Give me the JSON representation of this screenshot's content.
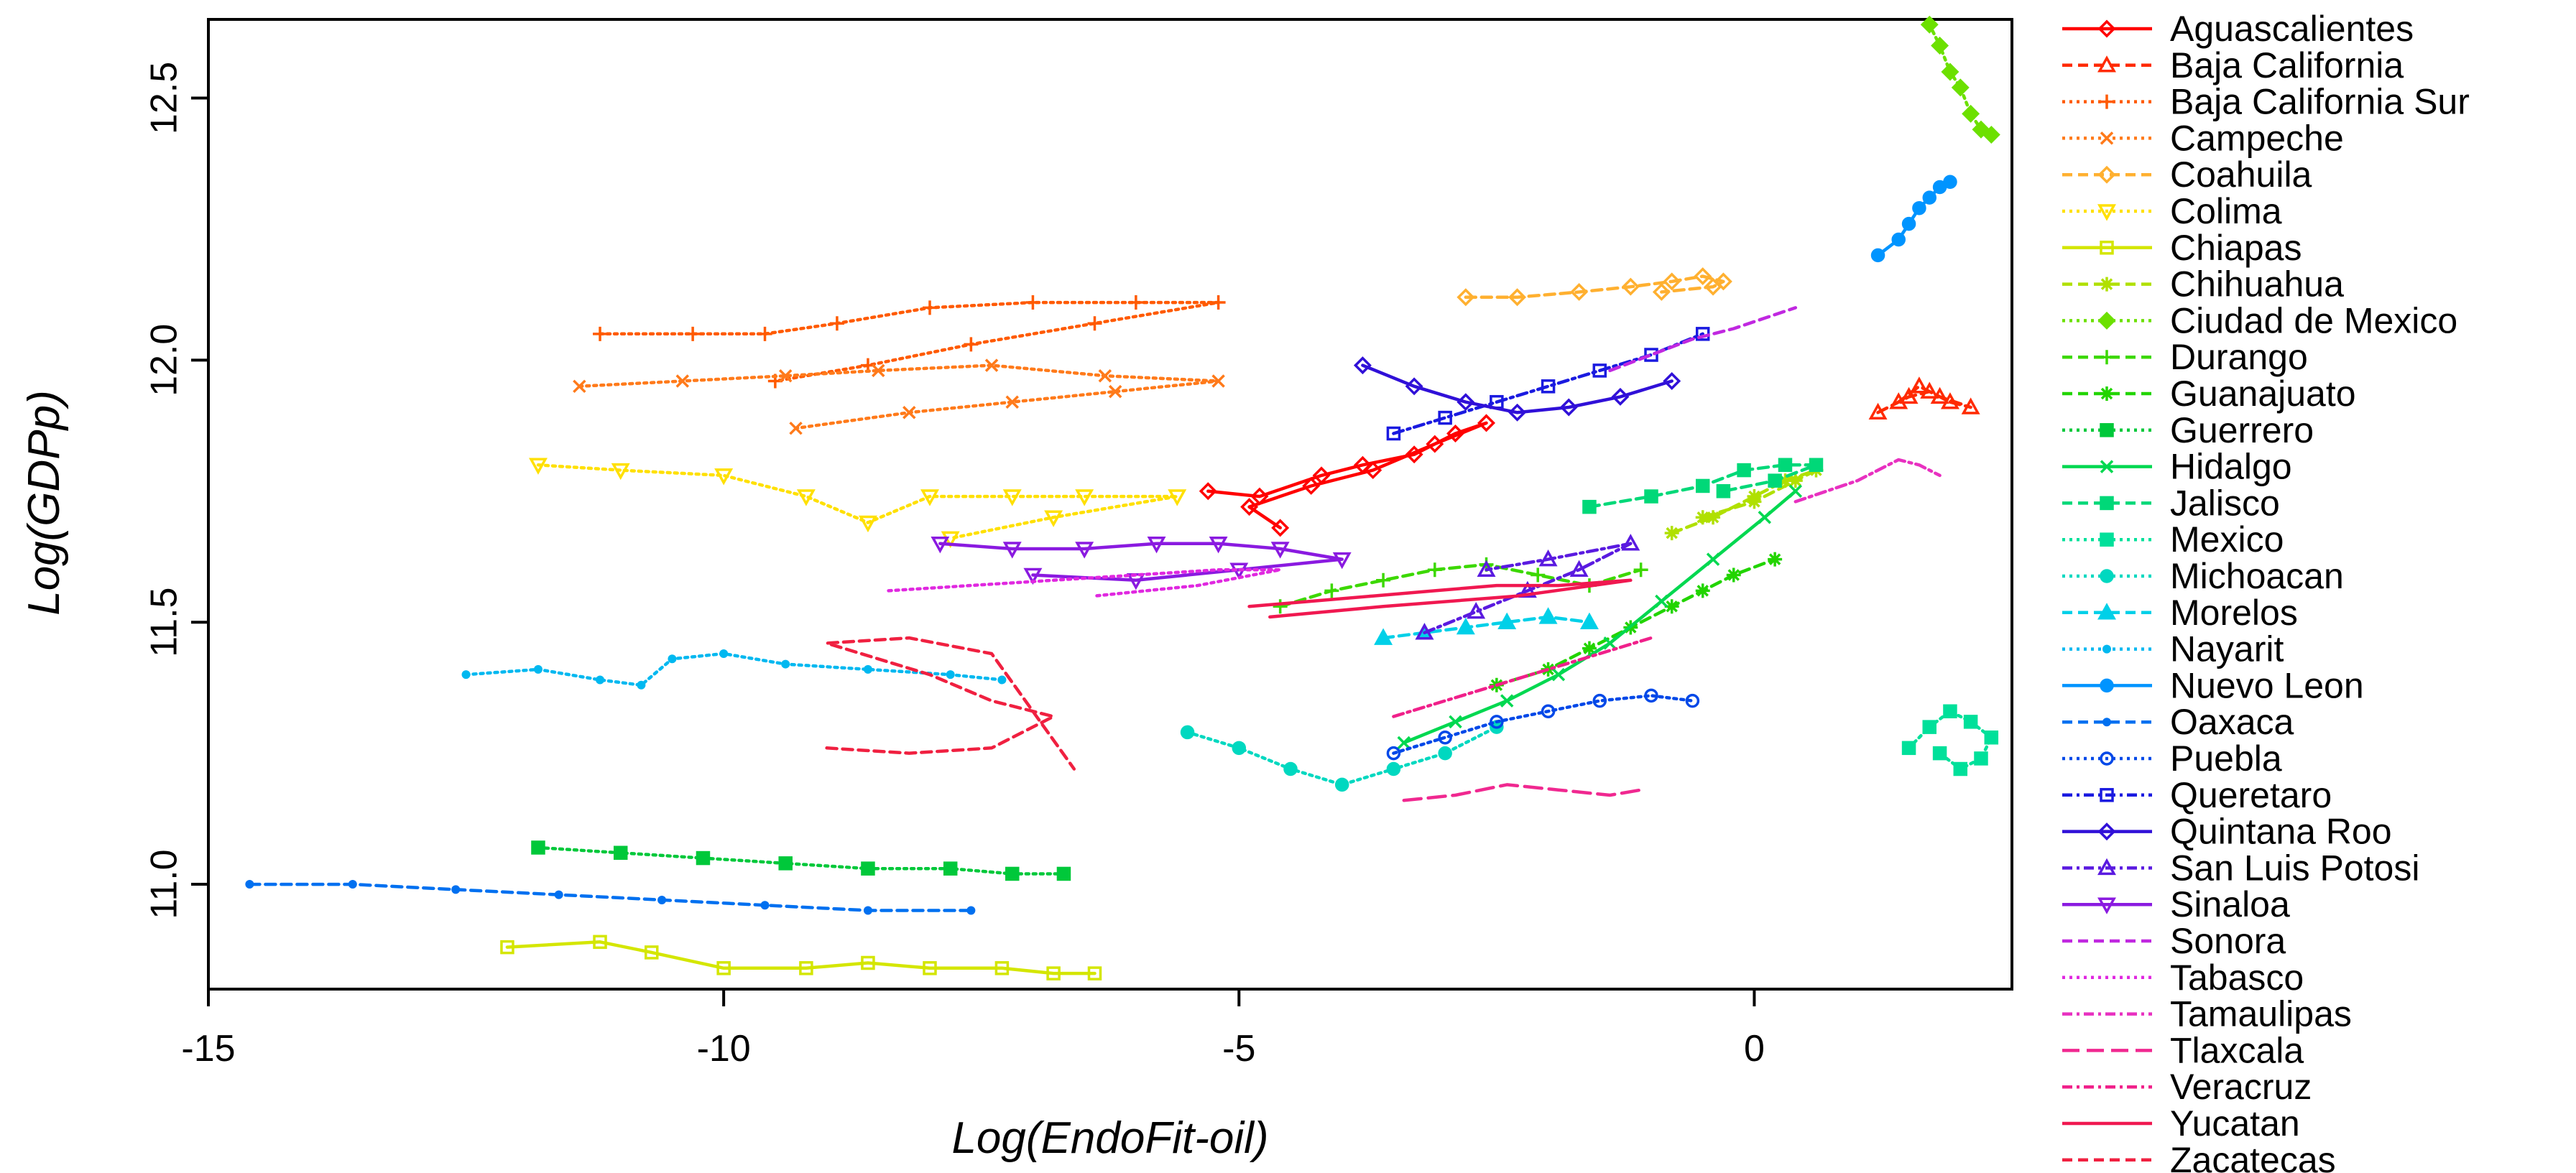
{
  "chart_data": {
    "type": "line",
    "title": "",
    "xlabel": "Log(EndoFit-oil)",
    "ylabel": "Log(GDPp)",
    "xlim": [
      -15,
      2.5
    ],
    "ylim": [
      10.8,
      12.65
    ],
    "xticks": [
      -15,
      -10,
      -5,
      0
    ],
    "xtick_labels": [
      "-15",
      "-10",
      "-5",
      "0"
    ],
    "yticks": [
      11.0,
      11.5,
      12.0,
      12.5
    ],
    "ytick_labels": [
      "11.0",
      "11.5",
      "12.0",
      "12.5"
    ],
    "grid": false,
    "legend_position": "right",
    "series": [
      {
        "name": "Aguascalientes",
        "color": "#ff0000",
        "dash": "",
        "marker": "diamond",
        "x": [
          -5.3,
          -4.8,
          -4.2,
          -3.8,
          -3.3,
          -2.9,
          -2.6,
          -3.1,
          -3.7,
          -4.3,
          -4.9,
          -4.6
        ],
        "y": [
          11.75,
          11.74,
          11.78,
          11.8,
          11.82,
          11.86,
          11.88,
          11.84,
          11.79,
          11.76,
          11.72,
          11.68
        ]
      },
      {
        "name": "Baja California",
        "color": "#ff2a00",
        "dash": "14,8",
        "marker": "triangle",
        "x": [
          1.2,
          1.5,
          1.7,
          1.9,
          2.1,
          1.8,
          1.6,
          1.4
        ],
        "y": [
          11.9,
          11.93,
          11.94,
          11.92,
          11.91,
          11.93,
          11.95,
          11.92
        ]
      },
      {
        "name": "Baja California Sur",
        "color": "#ff5a00",
        "dash": "4,6",
        "marker": "plus",
        "x": [
          -11.2,
          -10.3,
          -9.6,
          -8.9,
          -8.0,
          -7.0,
          -6.0,
          -5.2,
          -6.4,
          -7.6,
          -8.6,
          -9.5
        ],
        "y": [
          12.05,
          12.05,
          12.05,
          12.07,
          12.1,
          12.11,
          12.11,
          12.11,
          12.07,
          12.03,
          11.99,
          11.96
        ]
      },
      {
        "name": "Campeche",
        "color": "#ff7a1a",
        "dash": "4,6",
        "marker": "x",
        "x": [
          -11.4,
          -10.4,
          -9.4,
          -8.5,
          -7.4,
          -6.3,
          -5.2,
          -6.2,
          -7.2,
          -8.2,
          -9.3
        ],
        "y": [
          11.95,
          11.96,
          11.97,
          11.98,
          11.99,
          11.97,
          11.96,
          11.94,
          11.92,
          11.9,
          11.87
        ]
      },
      {
        "name": "Coahuila",
        "color": "#ffb030",
        "dash": "14,8",
        "marker": "diamond",
        "x": [
          -2.8,
          -2.3,
          -1.7,
          -1.2,
          -0.8,
          -0.5,
          -0.3,
          -0.4,
          -0.9
        ],
        "y": [
          12.12,
          12.12,
          12.13,
          12.14,
          12.15,
          12.16,
          12.15,
          12.14,
          12.13
        ]
      },
      {
        "name": "Colima",
        "color": "#ffe000",
        "dash": "4,6",
        "marker": "triangledown",
        "x": [
          -11.8,
          -11.0,
          -10.0,
          -9.2,
          -8.6,
          -8.0,
          -7.2,
          -6.5,
          -5.6,
          -6.8,
          -7.8
        ],
        "y": [
          11.8,
          11.79,
          11.78,
          11.74,
          11.69,
          11.74,
          11.74,
          11.74,
          11.74,
          11.7,
          11.66
        ]
      },
      {
        "name": "Chiapas",
        "color": "#d4e600",
        "dash": "",
        "marker": "square",
        "x": [
          -12.1,
          -11.2,
          -10.7,
          -10.0,
          -9.2,
          -8.6,
          -8.0,
          -7.3,
          -6.8,
          -6.4
        ],
        "y": [
          10.88,
          10.89,
          10.87,
          10.84,
          10.84,
          10.85,
          10.84,
          10.84,
          10.83,
          10.83
        ]
      },
      {
        "name": "Chihuahua",
        "color": "#b0e000",
        "dash": "14,8",
        "marker": "asterisk",
        "x": [
          -0.8,
          -0.4,
          0.0,
          0.3,
          0.6,
          0.4,
          0.0,
          -0.5
        ],
        "y": [
          11.67,
          11.7,
          11.74,
          11.77,
          11.79,
          11.77,
          11.73,
          11.7
        ]
      },
      {
        "name": "Ciudad de Mexico",
        "color": "#6ce000",
        "dash": "4,6",
        "marker": "diamondplus",
        "x": [
          1.7,
          1.8,
          1.9,
          2.0,
          2.1,
          2.2,
          2.3
        ],
        "y": [
          12.64,
          12.6,
          12.55,
          12.52,
          12.47,
          12.44,
          12.43
        ]
      },
      {
        "name": "Durango",
        "color": "#3cd800",
        "dash": "14,8",
        "marker": "plus",
        "x": [
          -4.6,
          -4.1,
          -3.6,
          -3.1,
          -2.6,
          -2.1,
          -1.6,
          -1.1
        ],
        "y": [
          11.53,
          11.56,
          11.58,
          11.6,
          11.61,
          11.59,
          11.57,
          11.6
        ]
      },
      {
        "name": "Guanajuato",
        "color": "#22d400",
        "dash": "14,8",
        "marker": "star",
        "x": [
          -2.5,
          -2.0,
          -1.6,
          -1.2,
          -0.8,
          -0.5,
          -0.2,
          0.2
        ],
        "y": [
          11.38,
          11.41,
          11.45,
          11.49,
          11.53,
          11.56,
          11.59,
          11.62
        ]
      },
      {
        "name": "Guerrero",
        "color": "#00c83a",
        "dash": "4,6",
        "marker": "squareplus",
        "x": [
          -11.8,
          -11.0,
          -10.2,
          -9.4,
          -8.6,
          -7.8,
          -7.2,
          -6.7
        ],
        "y": [
          11.07,
          11.06,
          11.05,
          11.04,
          11.03,
          11.03,
          11.02,
          11.02
        ]
      },
      {
        "name": "Hidalgo",
        "color": "#00d850",
        "dash": "",
        "marker": "x",
        "x": [
          -3.4,
          -2.9,
          -2.4,
          -1.9,
          -1.4,
          -0.9,
          -0.4,
          0.1,
          0.4
        ],
        "y": [
          11.27,
          11.31,
          11.35,
          11.4,
          11.46,
          11.54,
          11.62,
          11.7,
          11.75
        ]
      },
      {
        "name": "Jalisco",
        "color": "#00d878",
        "dash": "14,8",
        "marker": "squarebox",
        "x": [
          -1.6,
          -1.0,
          -0.5,
          -0.1,
          0.3,
          0.6,
          0.2,
          -0.3
        ],
        "y": [
          11.72,
          11.74,
          11.76,
          11.79,
          11.8,
          11.8,
          11.77,
          11.75
        ]
      },
      {
        "name": "Mexico",
        "color": "#00e09a",
        "dash": "4,6",
        "marker": "squarefill",
        "x": [
          1.5,
          1.7,
          1.9,
          2.1,
          2.3,
          2.2,
          2.0,
          1.8
        ],
        "y": [
          11.26,
          11.3,
          11.33,
          11.31,
          11.28,
          11.24,
          11.22,
          11.25
        ]
      },
      {
        "name": "Michoacan",
        "color": "#00d8c0",
        "dash": "4,6",
        "marker": "circlefill",
        "x": [
          -5.5,
          -5.0,
          -4.5,
          -4.0,
          -3.5,
          -3.0,
          -2.5
        ],
        "y": [
          11.29,
          11.26,
          11.22,
          11.19,
          11.22,
          11.25,
          11.3
        ]
      },
      {
        "name": "Morelos",
        "color": "#00d0e8",
        "dash": "14,8",
        "marker": "trianglefill",
        "x": [
          -3.6,
          -3.2,
          -2.8,
          -2.4,
          -2.0,
          -1.6
        ],
        "y": [
          11.47,
          11.48,
          11.49,
          11.5,
          11.51,
          11.5
        ]
      },
      {
        "name": "Nayarit",
        "color": "#00b8f0",
        "dash": "4,6",
        "marker": "dotsmall",
        "x": [
          -12.5,
          -11.8,
          -11.2,
          -10.8,
          -10.5,
          -10.0,
          -9.4,
          -8.6,
          -7.8,
          -7.3
        ],
        "y": [
          11.4,
          11.41,
          11.39,
          11.38,
          11.43,
          11.44,
          11.42,
          11.41,
          11.4,
          11.39
        ]
      },
      {
        "name": "Nuevo Leon",
        "color": "#0094ff",
        "dash": "",
        "marker": "circlefill",
        "x": [
          1.2,
          1.4,
          1.5,
          1.6,
          1.7,
          1.8,
          1.9
        ],
        "y": [
          12.2,
          12.23,
          12.26,
          12.29,
          12.31,
          12.33,
          12.34
        ]
      },
      {
        "name": "Oaxaca",
        "color": "#0070f0",
        "dash": "14,8",
        "marker": "dotsmall",
        "x": [
          -14.6,
          -13.6,
          -12.6,
          -11.6,
          -10.6,
          -9.6,
          -8.6,
          -7.6
        ],
        "y": [
          11.0,
          11.0,
          10.99,
          10.98,
          10.97,
          10.96,
          10.95,
          10.95
        ]
      },
      {
        "name": "Puebla",
        "color": "#0048e8",
        "dash": "4,6",
        "marker": "circle",
        "x": [
          -3.5,
          -3.0,
          -2.5,
          -2.0,
          -1.5,
          -1.0,
          -0.6
        ],
        "y": [
          11.25,
          11.28,
          11.31,
          11.33,
          11.35,
          11.36,
          11.35
        ]
      },
      {
        "name": "Queretaro",
        "color": "#1a1ae0",
        "dash": "14,6,4,6",
        "marker": "square",
        "x": [
          -3.5,
          -3.0,
          -2.5,
          -2.0,
          -1.5,
          -1.0,
          -0.5
        ],
        "y": [
          11.86,
          11.89,
          11.92,
          11.95,
          11.98,
          12.01,
          12.05
        ]
      },
      {
        "name": "Quintana Roo",
        "color": "#3010d8",
        "dash": "",
        "marker": "diamond",
        "x": [
          -3.8,
          -3.3,
          -2.8,
          -2.3,
          -1.8,
          -1.3,
          -0.8
        ],
        "y": [
          11.99,
          11.95,
          11.92,
          11.9,
          11.91,
          11.93,
          11.96
        ]
      },
      {
        "name": "San Luis Potosi",
        "color": "#5a1ae0",
        "dash": "14,6,4,6",
        "marker": "triangle",
        "x": [
          -3.2,
          -2.7,
          -2.2,
          -1.7,
          -1.2,
          -2.0,
          -2.6
        ],
        "y": [
          11.48,
          11.52,
          11.56,
          11.6,
          11.65,
          11.62,
          11.6
        ]
      },
      {
        "name": "Sinaloa",
        "color": "#8a1ae0",
        "dash": "",
        "marker": "triangledown",
        "x": [
          -7.9,
          -7.2,
          -6.5,
          -5.8,
          -5.2,
          -4.6,
          -4.0,
          -5.0,
          -6.0,
          -7.0
        ],
        "y": [
          11.65,
          11.64,
          11.64,
          11.65,
          11.65,
          11.64,
          11.62,
          11.6,
          11.58,
          11.59
        ]
      },
      {
        "name": "Sonora",
        "color": "#c028e0",
        "dash": "14,8",
        "marker": "",
        "x": [
          -1.4,
          -1.0,
          -0.6,
          -0.2,
          0.1,
          0.4
        ],
        "y": [
          11.98,
          12.01,
          12.04,
          12.06,
          12.08,
          12.1
        ]
      },
      {
        "name": "Tabasco",
        "color": "#e028e0",
        "dash": "4,6",
        "marker": "",
        "x": [
          -8.4,
          -7.6,
          -6.8,
          -6.0,
          -5.2,
          -4.6,
          -5.4,
          -6.4
        ],
        "y": [
          11.56,
          11.57,
          11.58,
          11.59,
          11.6,
          11.6,
          11.57,
          11.55
        ]
      },
      {
        "name": "Tamaulipas",
        "color": "#e830c0",
        "dash": "14,6,4,6",
        "marker": "",
        "x": [
          0.4,
          0.7,
          1.0,
          1.2,
          1.4,
          1.6,
          1.8
        ],
        "y": [
          11.73,
          11.75,
          11.77,
          11.79,
          11.81,
          11.8,
          11.78
        ]
      },
      {
        "name": "Tlaxcala",
        "color": "#f02890",
        "dash": "24,10",
        "marker": "",
        "x": [
          -3.4,
          -2.9,
          -2.4,
          -1.9,
          -1.4,
          -1.1
        ],
        "y": [
          11.16,
          11.17,
          11.19,
          11.18,
          11.17,
          11.18
        ]
      },
      {
        "name": "Veracruz",
        "color": "#f0208a",
        "dash": "14,6,4,6",
        "marker": "",
        "x": [
          -3.5,
          -3.0,
          -2.5,
          -2.0,
          -1.5,
          -1.0
        ],
        "y": [
          11.32,
          11.35,
          11.38,
          11.41,
          11.44,
          11.47
        ]
      },
      {
        "name": "Yucatan",
        "color": "#f01850",
        "dash": "",
        "marker": "",
        "x": [
          -4.9,
          -4.3,
          -3.7,
          -3.1,
          -2.5,
          -1.9,
          -1.2,
          -2.3,
          -3.6,
          -4.7
        ],
        "y": [
          11.53,
          11.54,
          11.55,
          11.56,
          11.57,
          11.57,
          11.58,
          11.55,
          11.53,
          11.51
        ]
      },
      {
        "name": "Zacatecas",
        "color": "#f02040",
        "dash": "14,8",
        "marker": "",
        "x": [
          -9.0,
          -8.2,
          -7.4,
          -6.8,
          -7.4,
          -8.0,
          -9.0,
          -8.2,
          -7.4,
          -6.6
        ],
        "y": [
          11.26,
          11.25,
          11.26,
          11.32,
          11.35,
          11.4,
          11.46,
          11.47,
          11.44,
          11.22
        ]
      }
    ]
  }
}
